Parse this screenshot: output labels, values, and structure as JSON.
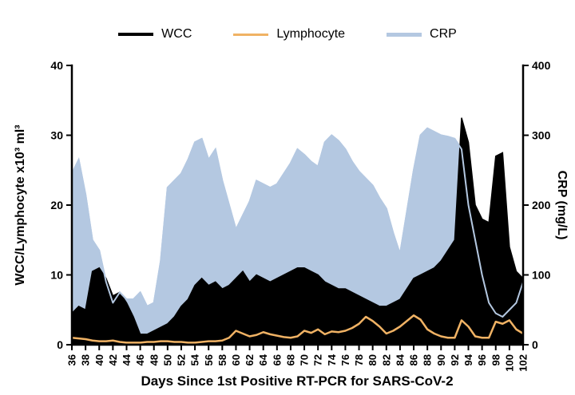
{
  "figure": {
    "background": "#ffffff"
  },
  "legend": {
    "items": [
      {
        "label": "WCC",
        "color": "#000000",
        "thickness": 4
      },
      {
        "label": "Lymphocyte",
        "color": "#f0b264",
        "thickness": 3
      },
      {
        "label": "CRP",
        "color": "#b4c8e1",
        "thickness": 5
      }
    ]
  },
  "chart_data": {
    "type": "area",
    "title": "",
    "xlabel": "Days Since 1st Positive RT-PCR for SARS-CoV-2",
    "ylabel_left": "WCC/Lymphocyte x10³ ml³",
    "ylabel_right": "CRP (mg/L)",
    "legend_position": "top",
    "grid": false,
    "x_range": [
      36,
      102
    ],
    "x_tick_step": 2,
    "left_axis": {
      "range": [
        0,
        40
      ],
      "ticks": [
        0,
        10,
        20,
        30,
        40
      ]
    },
    "right_axis": {
      "range": [
        0,
        400
      ],
      "ticks": [
        0,
        100,
        200,
        300,
        400
      ]
    },
    "x": [
      36,
      37,
      38,
      39,
      40,
      41,
      42,
      43,
      44,
      45,
      46,
      47,
      48,
      49,
      50,
      51,
      52,
      53,
      54,
      55,
      56,
      57,
      58,
      59,
      60,
      61,
      62,
      63,
      64,
      65,
      66,
      67,
      68,
      69,
      70,
      71,
      72,
      73,
      74,
      75,
      76,
      77,
      78,
      79,
      80,
      81,
      82,
      83,
      84,
      85,
      86,
      87,
      88,
      89,
      90,
      91,
      92,
      93,
      94,
      95,
      96,
      97,
      98,
      99,
      100,
      101,
      102
    ],
    "series": [
      {
        "name": "CRP",
        "axis": "right",
        "kind": "area",
        "color": "#b4c8e1",
        "stroke_width": 2,
        "line_on_top": true,
        "values": [
          245,
          265,
          215,
          150,
          135,
          90,
          60,
          75,
          65,
          65,
          75,
          55,
          60,
          120,
          225,
          235,
          245,
          265,
          290,
          295,
          265,
          280,
          235,
          200,
          165,
          185,
          205,
          235,
          230,
          225,
          230,
          245,
          260,
          280,
          272,
          262,
          255,
          290,
          300,
          292,
          280,
          262,
          248,
          238,
          228,
          210,
          195,
          160,
          130,
          190,
          250,
          300,
          310,
          305,
          300,
          298,
          295,
          280,
          200,
          150,
          100,
          60,
          45,
          40,
          50,
          60,
          90
        ]
      },
      {
        "name": "WCC",
        "axis": "left",
        "kind": "area",
        "color": "#000000",
        "stroke_width": 1.5,
        "line_on_top": false,
        "values": [
          4.5,
          5.5,
          5.0,
          10.5,
          11.0,
          9.5,
          7.0,
          7.5,
          6.0,
          4.0,
          1.5,
          1.5,
          2.0,
          2.5,
          3.0,
          4.0,
          5.5,
          6.5,
          8.5,
          9.5,
          8.5,
          9.0,
          8.0,
          8.5,
          9.5,
          10.5,
          9.0,
          10.0,
          9.5,
          9.0,
          9.5,
          10.0,
          10.5,
          11.0,
          11.0,
          10.5,
          10.0,
          9.0,
          8.5,
          8.0,
          8.0,
          7.5,
          7.0,
          6.5,
          6.0,
          5.5,
          5.5,
          6.0,
          6.5,
          8.0,
          9.5,
          10.0,
          10.5,
          11.0,
          12.0,
          13.5,
          15.0,
          32.5,
          29.0,
          20.0,
          18.0,
          17.5,
          27.0,
          27.5,
          14.0,
          10.5,
          9.5
        ]
      },
      {
        "name": "Lymphocyte",
        "axis": "left",
        "kind": "line",
        "color": "#f0b264",
        "stroke_width": 2.5,
        "line_on_top": false,
        "values": [
          1.0,
          0.9,
          0.8,
          0.6,
          0.5,
          0.5,
          0.6,
          0.4,
          0.3,
          0.3,
          0.3,
          0.4,
          0.4,
          0.5,
          0.5,
          0.4,
          0.4,
          0.3,
          0.3,
          0.4,
          0.5,
          0.5,
          0.6,
          1.0,
          2.0,
          1.6,
          1.2,
          1.4,
          1.8,
          1.5,
          1.3,
          1.1,
          1.0,
          1.2,
          2.0,
          1.7,
          2.2,
          1.5,
          1.9,
          1.8,
          2.0,
          2.4,
          3.0,
          4.0,
          3.4,
          2.6,
          1.6,
          2.0,
          2.6,
          3.4,
          4.2,
          3.6,
          2.2,
          1.6,
          1.2,
          1.0,
          1.0,
          3.5,
          2.6,
          1.2,
          1.0,
          1.0,
          3.3,
          3.0,
          3.5,
          2.2,
          1.6
        ]
      }
    ]
  }
}
